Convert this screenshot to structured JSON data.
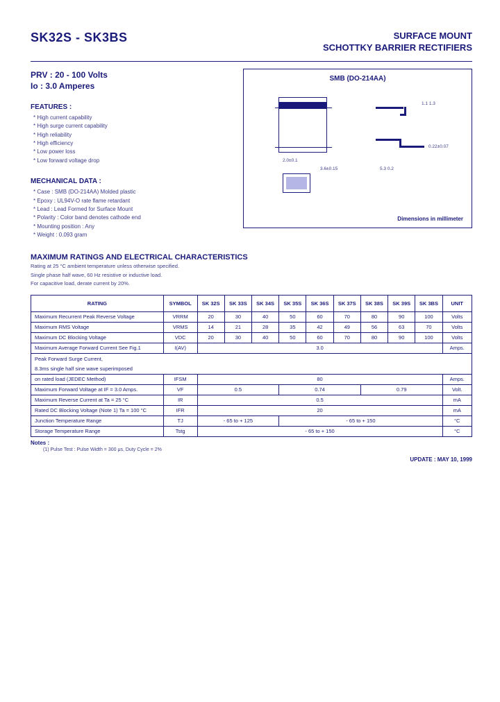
{
  "header": {
    "part_range": "SK32S - SK3BS",
    "doc_title_1": "SURFACE MOUNT",
    "doc_title_2": "SCHOTTKY BARRIER RECTIFIERS"
  },
  "specs": {
    "prv": "PRV :  20 - 100 Volts",
    "io": "Io :  3.0 Amperes"
  },
  "features": {
    "heading": "FEATURES :",
    "items": [
      "High current capability",
      "High surge current capability",
      "High reliability",
      "High efficiency",
      "Low power loss",
      "Low forward voltage drop"
    ]
  },
  "mechanical": {
    "heading": "MECHANICAL DATA :",
    "items": [
      "Case : SMB (DO-214AA) Molded plastic",
      "Epoxy : UL94V-O rate flame retardant",
      "Lead : Lead Formed for Surface Mount",
      "Polarity : Color band denotes cathode end",
      "Mounting position : Any",
      "Weight : 0.093 gram"
    ]
  },
  "package": {
    "title": "SMB (DO-214AA)",
    "dims_note": "Dimensions in millimeter",
    "dims": {
      "a": "2.0±0.1",
      "b": "3.6±0.15",
      "c": "5.3  0.2",
      "d": "1.1  1.3",
      "e": "0.22±0.07"
    }
  },
  "ratings_section": {
    "heading": "MAXIMUM RATINGS AND ELECTRICAL CHARACTERISTICS",
    "sub1": "Rating at 25 °C ambient temperature unless otherwise specified.",
    "sub2": "Single phase half wave, 60 Hz resistive or inductive load.",
    "sub3": "For capacitive load, derate current by 20%."
  },
  "table": {
    "headers": [
      "RATING",
      "SYMBOL",
      "SK 32S",
      "SK 33S",
      "SK 34S",
      "SK 35S",
      "SK 36S",
      "SK 37S",
      "SK 38S",
      "SK 39S",
      "SK 3BS",
      "UNIT"
    ],
    "rows": [
      {
        "label": "Maximum Recurrent Peak Reverse Voltage",
        "sym": "VRRM",
        "v": [
          "20",
          "30",
          "40",
          "50",
          "60",
          "70",
          "80",
          "90",
          "100"
        ],
        "unit": "Volts"
      },
      {
        "label": "Maximum RMS Voltage",
        "sym": "VRMS",
        "v": [
          "14",
          "21",
          "28",
          "35",
          "42",
          "49",
          "56",
          "63",
          "70"
        ],
        "unit": "Volts"
      },
      {
        "label": "Maximum DC Blocking Voltage",
        "sym": "VDC",
        "v": [
          "20",
          "30",
          "40",
          "50",
          "60",
          "70",
          "80",
          "90",
          "100"
        ],
        "unit": "Volts"
      },
      {
        "label": "Maximum Average Forward Current     See Fig.1",
        "sym": "I(AV)",
        "span": "3.0",
        "unit": "Amps."
      },
      {
        "label": "Peak Forward Surge Current,",
        "sym": "",
        "blank": true
      },
      {
        "label": "8.3ms single half sine wave superimposed",
        "sym": "",
        "blank": true
      },
      {
        "label": "on rated load (JEDEC Method)",
        "sym": "IFSM",
        "span": "80",
        "unit": "Amps."
      },
      {
        "label": "Maximum Forward Voltage at IF = 3.0 Amps.",
        "sym": "VF",
        "g3": [
          "0.5",
          "0.74",
          "0.79"
        ],
        "unit": "Volt."
      },
      {
        "label": "Maximum Reverse Current at         Ta = 25 °C",
        "sym": "IR",
        "span": "0.5",
        "unit": "mA"
      },
      {
        "label": "Rated DC Blocking Voltage (Note 1)    Ta = 100 °C",
        "sym": "IFR",
        "span": "20",
        "unit": "mA"
      },
      {
        "label": "Junction Temperature Range",
        "sym": "TJ",
        "g2": [
          "- 65 to + 125",
          "- 65 to + 150"
        ],
        "g2split": 3,
        "unit": "°C"
      },
      {
        "label": "Storage Temperature Range",
        "sym": "Tstg",
        "span": "- 65 to + 150",
        "unit": "°C"
      }
    ]
  },
  "notes": {
    "heading": "Notes :",
    "n1": "(1) Pulse Test : Pulse Width = 300 μs, Duty Cycle = 2%"
  },
  "footer": {
    "update": "UPDATE : MAY 10, 1999"
  },
  "colors": {
    "ink": "#1a1a7a"
  }
}
